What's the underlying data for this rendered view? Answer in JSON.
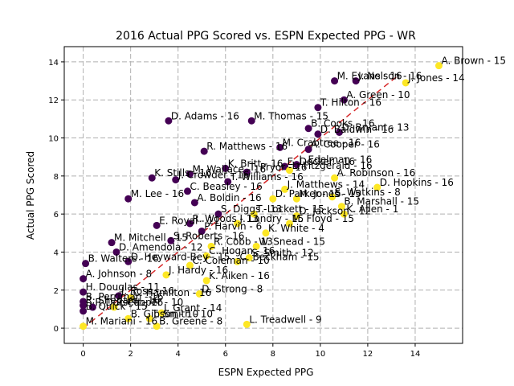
{
  "chart_data": {
    "type": "scatter",
    "title": "2016 Actual PPG Scored vs. ESPN Expected PPG - WR",
    "xlabel": "ESPN Expected PPG",
    "ylabel": "Actual PPG Scored",
    "xlim": [
      -0.8,
      16.0
    ],
    "ylim": [
      -0.8,
      14.8
    ],
    "xticks": [
      0,
      2,
      4,
      6,
      8,
      10,
      12,
      14
    ],
    "yticks": [
      0,
      2,
      4,
      6,
      8,
      10,
      12,
      14
    ],
    "grid": true,
    "grid_style": "dashed",
    "reference_line": {
      "x": [
        0,
        13.2
      ],
      "y": [
        0,
        13.2
      ],
      "color": "#d62728",
      "style": "dashed"
    },
    "colors": {
      "dark": "#440154",
      "light": "#fde725"
    },
    "points": [
      {
        "label": "A. Brown - 15",
        "x": 15.0,
        "y": 13.8,
        "c": "light"
      },
      {
        "label": "J. Jones - 14",
        "x": 13.6,
        "y": 12.9,
        "c": "light"
      },
      {
        "label": "M. Evans - 16",
        "x": 10.6,
        "y": 13.0,
        "c": "dark"
      },
      {
        "label": "J. Nelson - 16",
        "x": 11.5,
        "y": 13.0,
        "c": "dark"
      },
      {
        "label": "A. Green - 10",
        "x": 11.0,
        "y": 12.0,
        "c": "dark"
      },
      {
        "label": "T. Hilton - 16",
        "x": 9.9,
        "y": 11.6,
        "c": "dark"
      },
      {
        "label": "D. Adams - 16",
        "x": 3.6,
        "y": 10.9,
        "c": "dark"
      },
      {
        "label": "M. Thomas - 15",
        "x": 7.1,
        "y": 10.9,
        "c": "dark"
      },
      {
        "label": "B. Cooks - 16",
        "x": 9.5,
        "y": 10.5,
        "c": "dark"
      },
      {
        "label": "D. Baldwin - 16",
        "x": 9.9,
        "y": 10.2,
        "c": "dark"
      },
      {
        "label": "D. Bryant - 13",
        "x": 10.8,
        "y": 10.3,
        "c": "dark"
      },
      {
        "label": "R. Matthews - 16",
        "x": 5.1,
        "y": 9.3,
        "c": "dark"
      },
      {
        "label": "M. Crabtree - 16",
        "x": 8.3,
        "y": 9.5,
        "c": "dark"
      },
      {
        "label": "A. Cooper - 16",
        "x": 9.5,
        "y": 9.4,
        "c": "dark"
      },
      {
        "label": "K. Britt - 16",
        "x": 6.0,
        "y": 8.4,
        "c": "dark"
      },
      {
        "label": "E. Decker - 16",
        "x": 8.5,
        "y": 8.5,
        "c": "dark"
      },
      {
        "label": "J. Edelman - 16",
        "x": 9.0,
        "y": 8.6,
        "c": "dark"
      },
      {
        "label": "M. Wallace - 16",
        "x": 4.5,
        "y": 8.1,
        "c": "dark"
      },
      {
        "label": "T. Pryor - 16",
        "x": 6.9,
        "y": 8.2,
        "c": "dark"
      },
      {
        "label": "K. Stills - 16",
        "x": 2.9,
        "y": 7.9,
        "c": "dark"
      },
      {
        "label": "J. Crowder - 16",
        "x": 3.9,
        "y": 7.8,
        "c": "dark"
      },
      {
        "label": "T. Williams - 16",
        "x": 6.1,
        "y": 7.7,
        "c": "dark"
      },
      {
        "label": "L. Fitzgerald - 16",
        "x": 8.7,
        "y": 8.3,
        "c": "light"
      },
      {
        "label": "A. Robinson - 16",
        "x": 10.6,
        "y": 7.9,
        "c": "light"
      },
      {
        "label": "D. Hopkins - 16",
        "x": 12.4,
        "y": 7.4,
        "c": "light"
      },
      {
        "label": "J. Matthews - 14",
        "x": 8.5,
        "y": 7.3,
        "c": "light"
      },
      {
        "label": "C. Beasley - 16",
        "x": 4.4,
        "y": 7.2,
        "c": "dark"
      },
      {
        "label": "M. Lee - 16",
        "x": 1.9,
        "y": 6.8,
        "c": "dark"
      },
      {
        "label": "A. Boldin - 16",
        "x": 4.7,
        "y": 6.6,
        "c": "dark"
      },
      {
        "label": "D. Parker - 15",
        "x": 8.0,
        "y": 6.8,
        "c": "light"
      },
      {
        "label": "M. Jones - 15",
        "x": 9.0,
        "y": 6.8,
        "c": "light"
      },
      {
        "label": "S. Watkins - 8",
        "x": 10.5,
        "y": 6.9,
        "c": "light"
      },
      {
        "label": "B. Marshall - 15",
        "x": 10.9,
        "y": 6.4,
        "c": "light"
      },
      {
        "label": "K. Allen - 1",
        "x": 11.0,
        "y": 6.0,
        "c": "light"
      },
      {
        "label": "S. Diggs - 13",
        "x": 5.7,
        "y": 6.0,
        "c": "dark"
      },
      {
        "label": "T. Lockett - 15",
        "x": 7.2,
        "y": 6.0,
        "c": "light"
      },
      {
        "label": "D. Jackson - 12",
        "x": 9.0,
        "y": 5.9,
        "c": "light"
      },
      {
        "label": "E. Royal - 11",
        "x": 3.1,
        "y": 5.4,
        "c": "dark"
      },
      {
        "label": "R. Woods - 13",
        "x": 4.5,
        "y": 5.5,
        "c": "dark"
      },
      {
        "label": "J. Landry - 15",
        "x": 6.5,
        "y": 5.5,
        "c": "light"
      },
      {
        "label": "M. Floyd - 15",
        "x": 8.7,
        "y": 5.5,
        "c": "light"
      },
      {
        "label": "L. Treadwell - 9",
        "x": 6.9,
        "y": 0.2,
        "c": "light"
      },
      {
        "label": "K. White - 4",
        "x": 7.7,
        "y": 5.0,
        "c": "light"
      },
      {
        "label": "P. Harvin - 6",
        "x": 5.0,
        "y": 5.1,
        "c": "dark"
      },
      {
        "label": "M. Mitchell - 15",
        "x": 1.2,
        "y": 4.5,
        "c": "dark"
      },
      {
        "label": "S. Roberts - 16",
        "x": 3.7,
        "y": 4.6,
        "c": "dark"
      },
      {
        "label": "D. Amendola - 12",
        "x": 1.4,
        "y": 4.0,
        "c": "dark"
      },
      {
        "label": "R. Cobb - 13",
        "x": 5.4,
        "y": 4.3,
        "c": "light"
      },
      {
        "label": "W. Snead - 15",
        "x": 7.3,
        "y": 4.3,
        "c": "light"
      },
      {
        "label": "S. Smith - 12",
        "x": 7.0,
        "y": 3.7,
        "c": "light"
      },
      {
        "label": "C. Hogan - 16",
        "x": 5.2,
        "y": 3.8,
        "c": "light"
      },
      {
        "label": "D. Heyward-Bey - 15",
        "x": 1.9,
        "y": 3.5,
        "c": "dark"
      },
      {
        "label": "B. Walters - 16",
        "x": 0.1,
        "y": 3.4,
        "c": "dark"
      },
      {
        "label": "C. Beckham - 15",
        "x": 6.5,
        "y": 3.5,
        "c": "light"
      },
      {
        "label": "C. Coleman - 10",
        "x": 4.5,
        "y": 3.3,
        "c": "light"
      },
      {
        "label": "J. Hardy - 16",
        "x": 3.5,
        "y": 2.8,
        "c": "light"
      },
      {
        "label": "A. Johnson - 8",
        "x": 0.0,
        "y": 2.6,
        "c": "dark"
      },
      {
        "label": "K. Aiken - 16",
        "x": 5.2,
        "y": 2.5,
        "c": "light"
      },
      {
        "label": "H. Douglas - 11",
        "x": 0.0,
        "y": 1.9,
        "c": "dark"
      },
      {
        "label": "J. Ross - 16",
        "x": 1.5,
        "y": 1.7,
        "c": "dark"
      },
      {
        "label": "C. Hamilton - 16",
        "x": 2.0,
        "y": 1.6,
        "c": "light"
      },
      {
        "label": "D. Strong - 8",
        "x": 4.9,
        "y": 1.8,
        "c": "light"
      },
      {
        "label": "B. Perriman - 16",
        "x": 0.0,
        "y": 1.4,
        "c": "dark"
      },
      {
        "label": "R. Shepard - 16",
        "x": 0.0,
        "y": 1.2,
        "c": "dark"
      },
      {
        "label": "P. Dorsett - 16",
        "x": 0.4,
        "y": 1.1,
        "c": "dark"
      },
      {
        "label": "P. Cooper - 10",
        "x": 1.3,
        "y": 1.1,
        "c": "light"
      },
      {
        "label": "B. Quick - 15",
        "x": 0.0,
        "y": 0.9,
        "c": "dark"
      },
      {
        "label": "J. Grant - 14",
        "x": 3.3,
        "y": 0.8,
        "c": "light"
      },
      {
        "label": "T. Smith - 10",
        "x": 2.8,
        "y": 0.5,
        "c": "light"
      },
      {
        "label": "B. Gibson - 10",
        "x": 1.9,
        "y": 0.5,
        "c": "light"
      },
      {
        "label": "M. Mariani - 16",
        "x": 0.0,
        "y": 0.1,
        "c": "light"
      },
      {
        "label": "B. Greene - 8",
        "x": 3.1,
        "y": 0.1,
        "c": "light"
      }
    ]
  }
}
